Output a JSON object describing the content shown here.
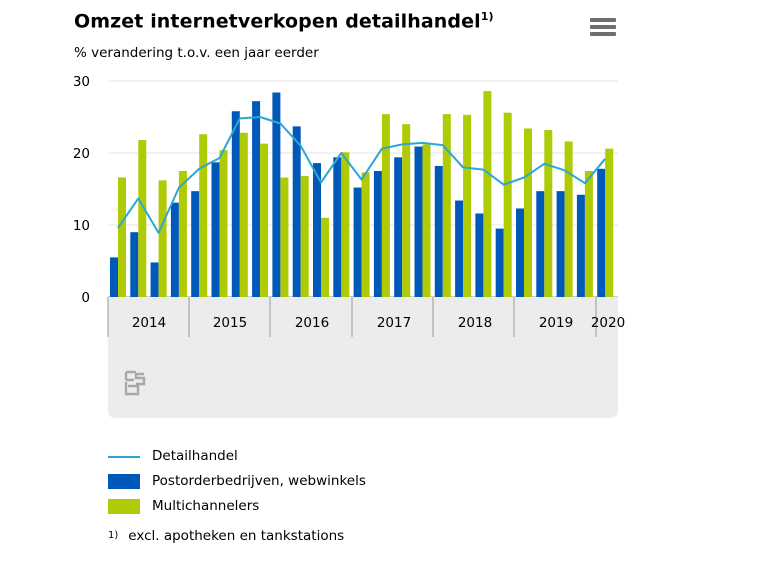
{
  "header": {
    "title": "Omzet internetverkopen detailhandel",
    "title_footnote_mark": "1)",
    "subtitle": "% verandering t.o.v. een jaar eerder"
  },
  "menu": {
    "icon": "hamburger-menu-icon"
  },
  "chart_data": {
    "type": "bar",
    "ylim": [
      0,
      30
    ],
    "yticks": [
      0,
      10,
      20,
      30
    ],
    "grid": true,
    "year_labels": [
      "2014",
      "2015",
      "2016",
      "2017",
      "2018",
      "2019",
      "2020"
    ],
    "periods_per_year": 4,
    "series": [
      {
        "name": "Postorderbedrijven, webwinkels",
        "kind": "bar",
        "color": "#0058b8",
        "values": [
          5.5,
          9,
          4.8,
          13.1,
          14.7,
          18.7,
          25.8,
          27.2,
          28.4,
          23.7,
          18.6,
          19.4,
          15.2,
          17.5,
          19.4,
          20.9,
          18.2,
          13.4,
          11.6,
          9.5,
          12.3,
          14.7,
          14.7,
          14.2,
          17.8
        ]
      },
      {
        "name": "Multichannelers",
        "kind": "bar",
        "color": "#afcb05",
        "values": [
          16.6,
          21.8,
          16.2,
          17.5,
          22.6,
          20.4,
          22.8,
          21.3,
          16.6,
          16.8,
          11.0,
          20.1,
          17.3,
          25.4,
          24.0,
          21.2,
          25.4,
          25.3,
          28.6,
          25.6,
          23.4,
          23.2,
          21.6,
          17.5,
          20.6
        ]
      },
      {
        "name": "Detailhandel",
        "kind": "line",
        "color": "#2ea6d3",
        "values": [
          9.6,
          13.7,
          8.9,
          15.2,
          17.8,
          19.3,
          24.8,
          25.0,
          24.1,
          21.0,
          15.9,
          20.0,
          16.3,
          20.6,
          21.2,
          21.4,
          21.1,
          18.0,
          17.7,
          15.6,
          16.6,
          18.5,
          17.6,
          15.8,
          19.2
        ]
      }
    ],
    "legend_position": "bottom",
    "footnote": "excl. apotheken en tankstations",
    "footnote_mark": "1)"
  },
  "legend": {
    "items": [
      {
        "label": "Detailhandel",
        "color": "#2ea6d3",
        "shape": "line"
      },
      {
        "label": "Postorderbedrijven, webwinkels",
        "color": "#0058b8",
        "shape": "box"
      },
      {
        "label": "Multichannelers",
        "color": "#afcb05",
        "shape": "box"
      }
    ]
  },
  "footer": {
    "logo": "cbs-logo-icon",
    "footnote_mark": "1)",
    "footnote_text": "excl. apotheken en tankstations"
  }
}
